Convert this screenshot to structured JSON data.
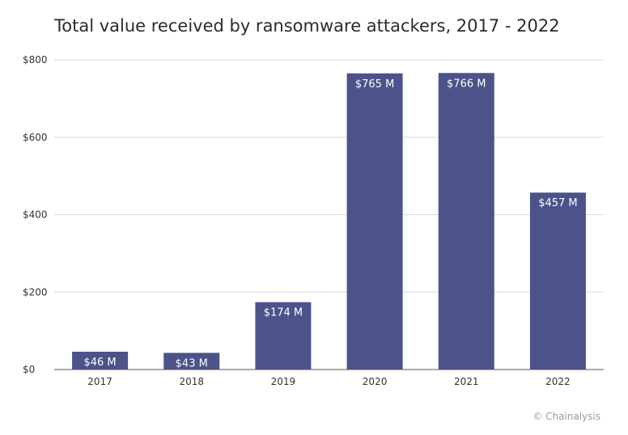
{
  "chart_data": {
    "type": "bar",
    "title": "Total value received by ransomware attackers, 2017 - 2022",
    "categories": [
      "2017",
      "2018",
      "2019",
      "2020",
      "2021",
      "2022"
    ],
    "values": [
      46,
      43,
      174,
      765,
      766,
      457
    ],
    "data_labels": [
      "$46 M",
      "$43 M",
      "$174 M",
      "$765 M",
      "$766 M",
      "$457 M"
    ],
    "y_ticks": [
      0,
      200,
      400,
      600,
      800
    ],
    "y_tick_labels": [
      "$0",
      "$200",
      "$400",
      "$600",
      "$800"
    ],
    "xlabel": "",
    "ylabel": "",
    "ylim": [
      0,
      800
    ],
    "grid": true,
    "bar_color": "#4b538a",
    "gridline_color": "#d9d9d9",
    "axis_color": "#555555"
  },
  "footer": {
    "credit": "© Chainalysis"
  }
}
